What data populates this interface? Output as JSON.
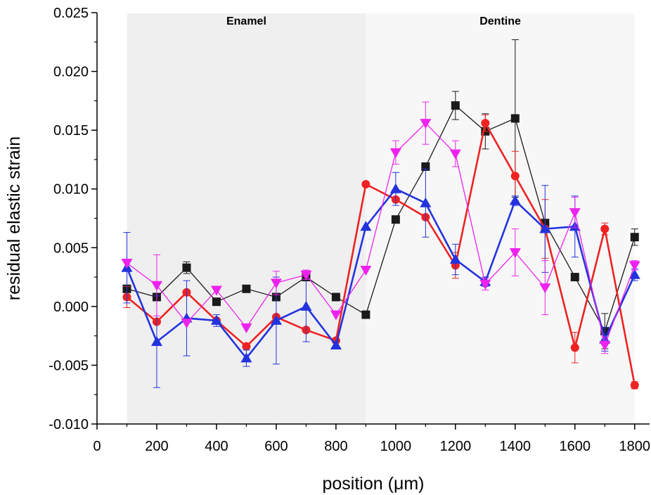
{
  "chart_data": {
    "type": "line",
    "title": "",
    "xlabel": "position (μm)",
    "ylabel": "residual elastic strain",
    "xlim": [
      0,
      1850
    ],
    "ylim": [
      -0.01,
      0.025
    ],
    "xticks": [
      0,
      200,
      400,
      600,
      800,
      1000,
      1200,
      1400,
      1600,
      1800
    ],
    "xtick_labels": [
      "0",
      "200",
      "400",
      "600",
      "800",
      "1000",
      "1200",
      "1400",
      "1600",
      "1800"
    ],
    "yticks": [
      -0.01,
      -0.005,
      0.0,
      0.005,
      0.01,
      0.015,
      0.02,
      0.025
    ],
    "ytick_labels": [
      "-0.010",
      "-0.005",
      "0.000",
      "0.005",
      "0.010",
      "0.015",
      "0.020",
      "0.025"
    ],
    "grid": false,
    "regions": [
      {
        "label": "Enamel",
        "x_start": 100,
        "x_end": 900,
        "color": "#efefef"
      },
      {
        "label": "Dentine",
        "x_start": 900,
        "x_end": 1800,
        "color": "#f7f7f7"
      }
    ],
    "x": [
      100,
      200,
      300,
      400,
      500,
      600,
      700,
      800,
      900,
      1000,
      1100,
      1200,
      1300,
      1400,
      1500,
      1600,
      1700,
      1800
    ],
    "series": [
      {
        "color": "#1a1a1a",
        "marker": "square",
        "line_width": 1.3,
        "values": [
          0.0015,
          0.0008,
          0.0033,
          0.0004,
          0.0015,
          0.0008,
          0.0025,
          0.0008,
          -0.0007,
          0.0074,
          0.0119,
          0.0171,
          0.0149,
          0.016,
          0.0071,
          0.0025,
          -0.0021,
          0.0059
        ],
        "errors": [
          0.0,
          0.0,
          0.0005,
          0.0,
          0.0,
          0.0,
          0.0,
          0.0,
          0.0,
          0.0,
          0.0,
          0.0012,
          0.0015,
          0.0067,
          0.0,
          0.0,
          0.0015,
          0.0007
        ]
      },
      {
        "color": "#ee2222",
        "marker": "circle",
        "line_width": 2.6,
        "values": [
          0.0008,
          -0.0013,
          0.0012,
          -0.0012,
          -0.0034,
          -0.0009,
          -0.002,
          -0.0029,
          0.0104,
          0.0091,
          0.0076,
          0.0035,
          0.0156,
          0.0111,
          0.0066,
          -0.0035,
          0.0066,
          -0.0067
        ],
        "errors": [
          0.0009,
          0.0,
          0.0,
          0.0,
          0.0,
          0.0,
          0.0,
          0.0,
          0.0,
          0.0,
          0.0,
          0.0011,
          0.0007,
          0.0021,
          0.0025,
          0.0013,
          0.0005,
          0.0003
        ]
      },
      {
        "color": "#2233dd",
        "marker": "triangle-up",
        "line_width": 2.6,
        "values": [
          0.0033,
          -0.003,
          -0.001,
          -0.0012,
          -0.0044,
          -0.0012,
          0.0,
          -0.0033,
          0.0068,
          0.01,
          0.0088,
          0.004,
          0.0021,
          0.009,
          0.0066,
          0.0068,
          -0.0028,
          0.0027
        ],
        "errors": [
          0.003,
          0.0039,
          0.0032,
          0.0005,
          0.0007,
          0.0037,
          0.003,
          0.0003,
          0.0,
          0.0014,
          0.0029,
          0.0013,
          0.0004,
          0.0004,
          0.0037,
          0.0026,
          0.001,
          0.0005
        ]
      },
      {
        "color": "#ee22ee",
        "marker": "triangle-down",
        "line_width": 1.3,
        "values": [
          0.0037,
          0.0018,
          -0.0014,
          0.0014,
          -0.0018,
          0.002,
          0.0027,
          -0.0007,
          0.0031,
          0.0131,
          0.0156,
          0.013,
          0.0019,
          0.0046,
          0.0016,
          0.008,
          -0.0033,
          0.0035
        ],
        "errors": [
          0.0,
          0.0026,
          0.0,
          0.0,
          0.0,
          0.001,
          0.0004,
          0.0,
          0.0,
          0.001,
          0.0018,
          0.0011,
          0.0005,
          0.002,
          0.0023,
          0.0013,
          0.0007,
          0.0004
        ]
      }
    ]
  }
}
